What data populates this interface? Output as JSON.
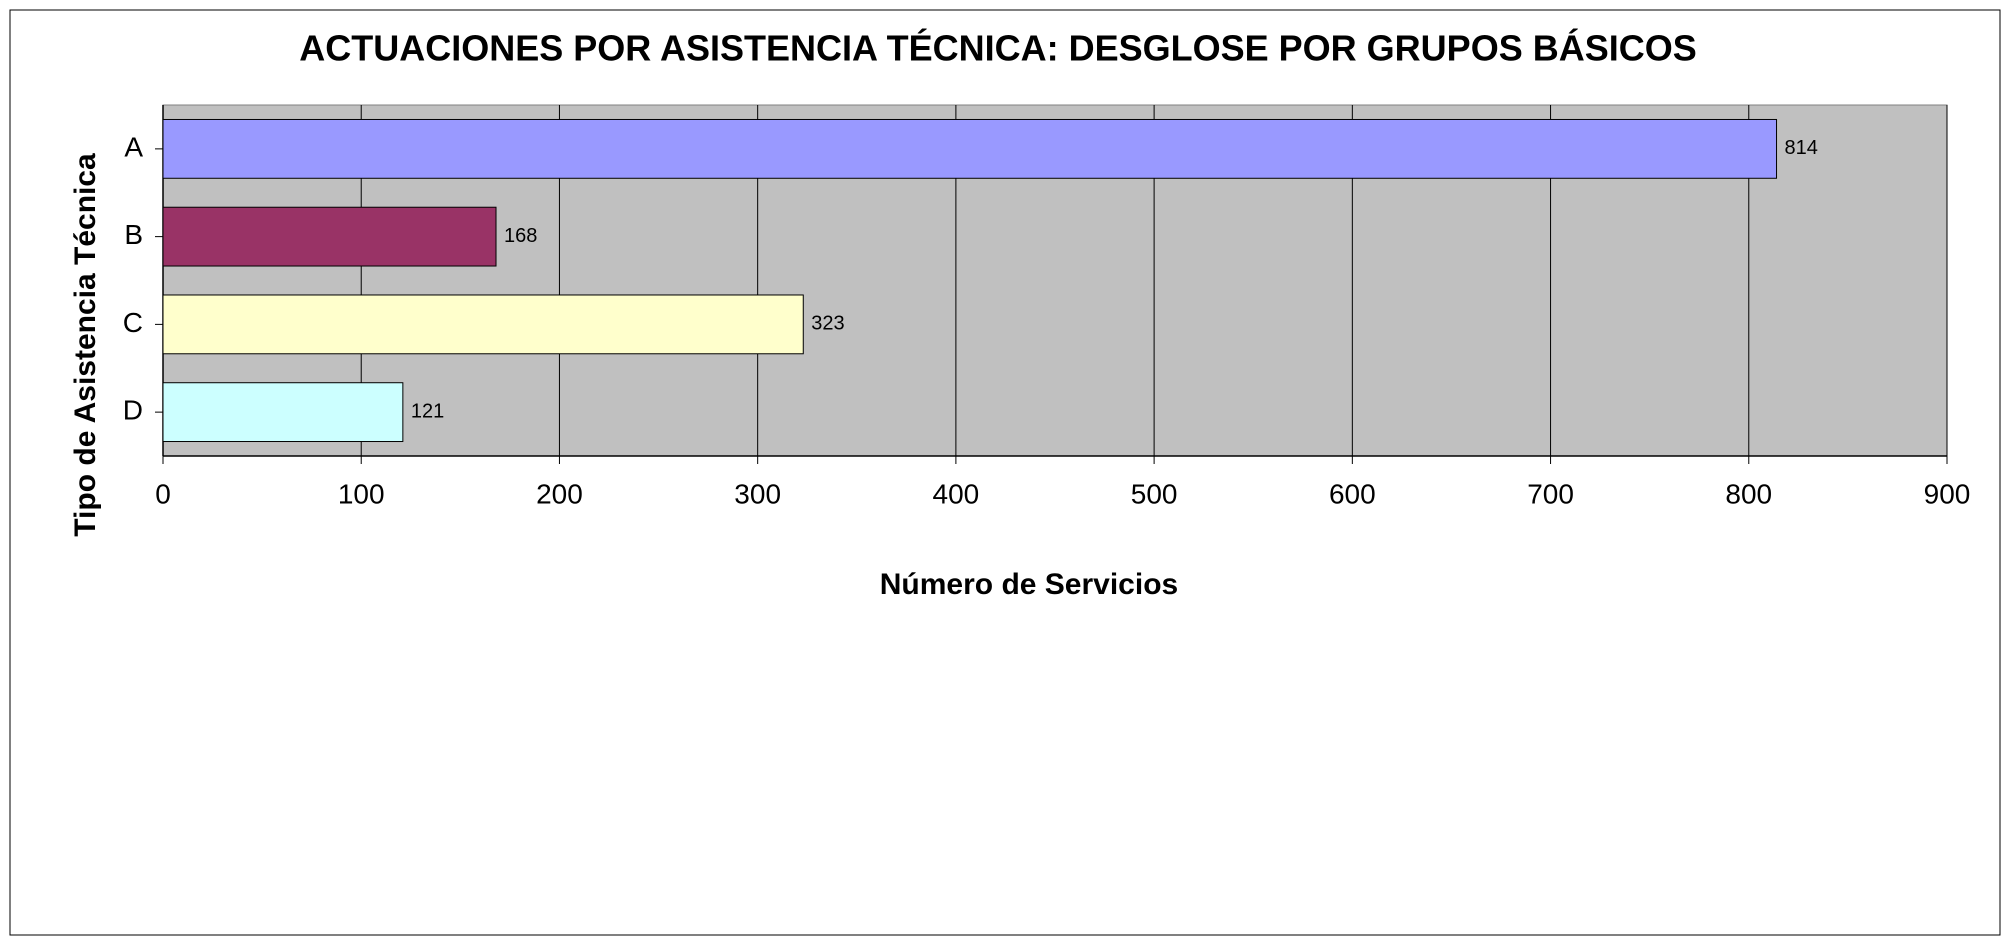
{
  "chart_data": {
    "type": "bar",
    "orientation": "horizontal",
    "title": "ACTUACIONES POR ASISTENCIA TÉCNICA: DESGLOSE POR GRUPOS BÁSICOS",
    "x_label": "Número de Servicios",
    "y_label": "Tipo de Asistencia  Técnica",
    "categories": [
      "A",
      "B",
      "C",
      "D"
    ],
    "values": [
      814,
      168,
      323,
      121
    ],
    "colors": [
      "#9999ff",
      "#993366",
      "#ffffcc",
      "#ccffff"
    ],
    "xlim": [
      0,
      900
    ],
    "xticks": [
      0,
      100,
      200,
      300,
      400,
      500,
      600,
      700,
      800,
      900
    ],
    "grid": true,
    "plot_background": "#c0c0c0"
  }
}
